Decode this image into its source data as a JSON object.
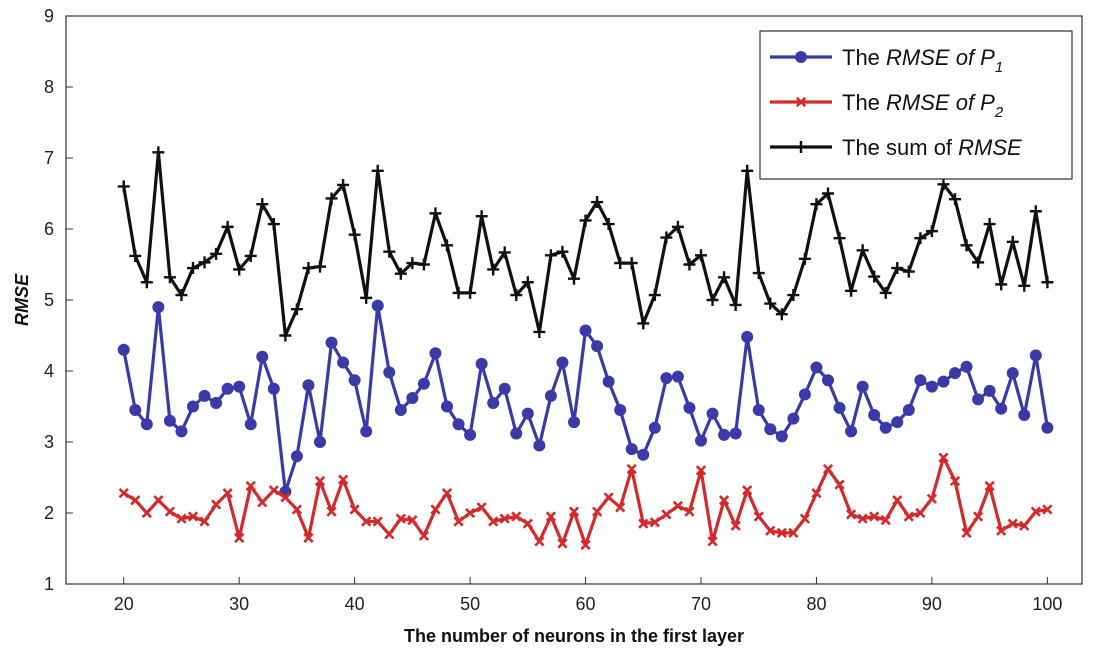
{
  "chart_data": {
    "type": "line",
    "title": "",
    "xlabel": "The number of neurons in the first layer",
    "ylabel": "RMSE",
    "xlim": [
      15,
      103
    ],
    "ylim": [
      1,
      9
    ],
    "xticks": [
      20,
      30,
      40,
      50,
      60,
      70,
      80,
      90,
      100
    ],
    "yticks": [
      1,
      2,
      3,
      4,
      5,
      6,
      7,
      8,
      9
    ],
    "grid": false,
    "legend_position": "top-right",
    "x": [
      20,
      21,
      22,
      23,
      24,
      25,
      26,
      27,
      28,
      29,
      30,
      31,
      32,
      33,
      34,
      35,
      36,
      37,
      38,
      39,
      40,
      41,
      42,
      43,
      44,
      45,
      46,
      47,
      48,
      49,
      50,
      51,
      52,
      53,
      54,
      55,
      56,
      57,
      58,
      59,
      60,
      61,
      62,
      63,
      64,
      65,
      66,
      67,
      68,
      69,
      70,
      71,
      72,
      73,
      74,
      75,
      76,
      77,
      78,
      79,
      80,
      81,
      82,
      83,
      84,
      85,
      86,
      87,
      88,
      89,
      90,
      91,
      92,
      93,
      94,
      95,
      96,
      97,
      98,
      99,
      100
    ],
    "series": [
      {
        "name": "The RMSE of P1",
        "legend": {
          "prefix": "The ",
          "italic": "RMSE of P",
          "sub": "1",
          "suffix": ""
        },
        "color": "#3a3aa8",
        "marker": "circle",
        "values": [
          4.3,
          3.45,
          3.25,
          4.9,
          3.3,
          3.15,
          3.5,
          3.65,
          3.55,
          3.75,
          3.78,
          3.25,
          4.2,
          3.75,
          2.3,
          2.8,
          3.8,
          3.0,
          4.4,
          4.12,
          3.87,
          3.15,
          4.92,
          3.98,
          3.45,
          3.62,
          3.82,
          4.25,
          3.5,
          3.25,
          3.1,
          4.1,
          3.55,
          3.75,
          3.12,
          3.4,
          2.95,
          3.65,
          4.12,
          3.28,
          4.57,
          4.35,
          3.85,
          3.45,
          2.9,
          2.82,
          3.2,
          3.9,
          3.92,
          3.48,
          3.02,
          3.4,
          3.1,
          3.12,
          4.48,
          3.45,
          3.18,
          3.08,
          3.33,
          3.67,
          4.05,
          3.87,
          3.48,
          3.15,
          3.78,
          3.38,
          3.2,
          3.28,
          3.45,
          3.87,
          3.78,
          3.85,
          3.97,
          4.06,
          3.6,
          3.72,
          3.47,
          3.97,
          3.38,
          4.22,
          3.2
        ]
      },
      {
        "name": "The RMSE of P2",
        "legend": {
          "prefix": "The ",
          "italic": "RMSE of P",
          "sub": "2",
          "suffix": ""
        },
        "color": "#d42a2a",
        "marker": "x",
        "values": [
          2.28,
          2.18,
          2.0,
          2.18,
          2.02,
          1.92,
          1.95,
          1.88,
          2.12,
          2.28,
          1.65,
          2.38,
          2.15,
          2.32,
          2.22,
          2.05,
          1.65,
          2.45,
          2.02,
          2.47,
          2.05,
          1.88,
          1.88,
          1.7,
          1.92,
          1.9,
          1.68,
          2.05,
          2.28,
          1.88,
          2.0,
          2.08,
          1.88,
          1.92,
          1.95,
          1.85,
          1.6,
          1.95,
          1.57,
          2.02,
          1.55,
          2.02,
          2.22,
          2.08,
          2.62,
          1.85,
          1.87,
          1.98,
          2.1,
          2.02,
          2.6,
          1.6,
          2.18,
          1.82,
          2.32,
          1.95,
          1.75,
          1.72,
          1.72,
          1.92,
          2.28,
          2.62,
          2.4,
          1.98,
          1.92,
          1.95,
          1.9,
          2.18,
          1.95,
          2.0,
          2.2,
          2.78,
          2.45,
          1.72,
          1.95,
          2.38,
          1.75,
          1.85,
          1.82,
          2.02,
          2.05
        ]
      },
      {
        "name": "The sum of RMSE",
        "legend": {
          "prefix": "The sum of ",
          "italic": "RMSE",
          "sub": "",
          "suffix": ""
        },
        "color": "#111111",
        "marker": "plus",
        "values": [
          6.6,
          5.62,
          5.25,
          7.08,
          5.32,
          5.07,
          5.45,
          5.53,
          5.65,
          6.03,
          5.43,
          5.62,
          6.35,
          6.07,
          4.5,
          4.87,
          5.45,
          5.47,
          6.43,
          6.62,
          5.92,
          5.03,
          6.82,
          5.68,
          5.37,
          5.52,
          5.5,
          6.22,
          5.77,
          5.1,
          5.1,
          6.18,
          5.43,
          5.67,
          5.07,
          5.25,
          4.55,
          5.63,
          5.68,
          5.3,
          6.12,
          6.38,
          6.07,
          5.52,
          5.52,
          4.67,
          5.07,
          5.88,
          6.03,
          5.5,
          5.63,
          5.0,
          5.32,
          4.93,
          6.82,
          5.38,
          4.95,
          4.8,
          5.07,
          5.58,
          6.35,
          6.5,
          5.87,
          5.13,
          5.7,
          5.33,
          5.1,
          5.45,
          5.4,
          5.87,
          5.97,
          6.63,
          6.42,
          5.77,
          5.53,
          6.07,
          5.22,
          5.82,
          5.2,
          6.25,
          5.25
        ]
      }
    ]
  }
}
